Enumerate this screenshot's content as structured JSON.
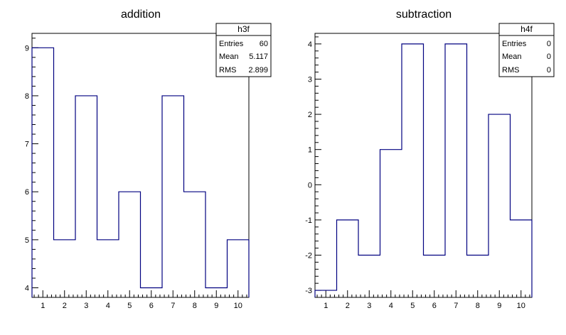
{
  "chart_data": [
    {
      "type": "histogram",
      "title": "addition",
      "xlabel": "",
      "ylabel": "",
      "xlim": [
        0.5,
        10.5
      ],
      "ylim": [
        3.8,
        9.3
      ],
      "bin_edges": [
        0.5,
        1.5,
        2.5,
        3.5,
        4.5,
        5.5,
        6.5,
        7.5,
        8.5,
        9.5,
        10.5
      ],
      "values": [
        9,
        5,
        8,
        5,
        6,
        4,
        8,
        6,
        4,
        5
      ],
      "x_tick_labels": [
        "1",
        "2",
        "3",
        "4",
        "5",
        "6",
        "7",
        "8",
        "9",
        "10"
      ],
      "y_ticks": [
        4,
        5,
        6,
        7,
        8,
        9
      ],
      "y_tick_labels": [
        "4",
        "5",
        "6",
        "7",
        "8",
        "9"
      ],
      "line_color": "#000080",
      "stats_box": {
        "name": "h3f",
        "rows": [
          {
            "label": "Entries",
            "value": "60"
          },
          {
            "label": "Mean",
            "value": "5.117"
          },
          {
            "label": "RMS",
            "value": "2.899"
          }
        ]
      }
    },
    {
      "type": "histogram",
      "title": "subtraction",
      "xlabel": "",
      "ylabel": "",
      "xlim": [
        0.5,
        10.5
      ],
      "ylim": [
        -3.2,
        4.3
      ],
      "bin_edges": [
        0.5,
        1.5,
        2.5,
        3.5,
        4.5,
        5.5,
        6.5,
        7.5,
        8.5,
        9.5,
        10.5
      ],
      "values": [
        -3,
        -1,
        -2,
        1,
        4,
        -2,
        4,
        -2,
        2,
        -1
      ],
      "x_tick_labels": [
        "1",
        "2",
        "3",
        "4",
        "5",
        "6",
        "7",
        "8",
        "9",
        "10"
      ],
      "y_ticks": [
        -3,
        -2,
        -1,
        0,
        1,
        2,
        3,
        4
      ],
      "y_tick_labels": [
        "-3",
        "-2",
        "-1",
        "0",
        "1",
        "2",
        "3",
        "4"
      ],
      "line_color": "#000080",
      "stats_box": {
        "name": "h4f",
        "rows": [
          {
            "label": "Entries",
            "value": "0"
          },
          {
            "label": "Mean",
            "value": "0"
          },
          {
            "label": "RMS",
            "value": "0"
          }
        ]
      }
    }
  ]
}
